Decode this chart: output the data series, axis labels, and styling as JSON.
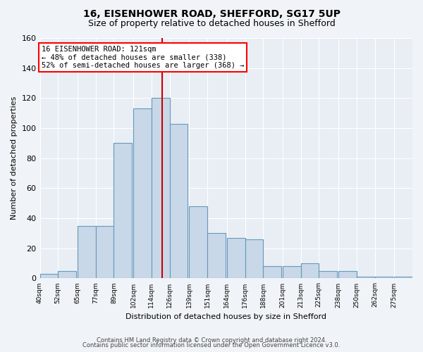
{
  "title": "16, EISENHOWER ROAD, SHEFFORD, SG17 5UP",
  "subtitle": "Size of property relative to detached houses in Shefford",
  "xlabel": "Distribution of detached houses by size in Shefford",
  "ylabel": "Number of detached properties",
  "bar_color": "#c8d8e8",
  "bar_edge_color": "#6699bb",
  "background_color": "#e8eef4",
  "annotation_text": "16 EISENHOWER ROAD: 121sqm\n← 48% of detached houses are smaller (338)\n52% of semi-detached houses are larger (368) →",
  "vline_x": 121,
  "vline_color": "#cc0000",
  "ylim": [
    0,
    160
  ],
  "yticks": [
    0,
    20,
    40,
    60,
    80,
    100,
    120,
    140,
    160
  ],
  "bins": [
    40,
    52,
    65,
    77,
    89,
    102,
    114,
    126,
    139,
    151,
    164,
    176,
    188,
    201,
    213,
    225,
    238,
    250,
    262,
    275,
    287
  ],
  "counts": [
    3,
    5,
    35,
    35,
    90,
    113,
    120,
    103,
    48,
    30,
    27,
    26,
    8,
    8,
    10,
    5,
    5,
    1,
    1,
    1
  ],
  "footer1": "Contains HM Land Registry data © Crown copyright and database right 2024.",
  "footer2": "Contains public sector information licensed under the Open Government Licence v3.0."
}
